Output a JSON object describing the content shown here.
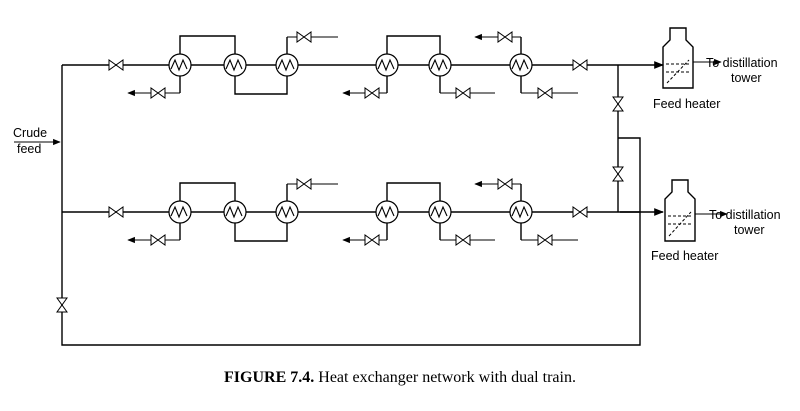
{
  "labels": {
    "crude_line1": "Crude",
    "crude_line2": "feed",
    "dest_line1": "To distillation",
    "dest_line2": "tower",
    "feed_heater": "Feed heater"
  },
  "caption": {
    "figure_number": "FIGURE 7.4.",
    "text": "Heat exchanger network with dual train."
  }
}
